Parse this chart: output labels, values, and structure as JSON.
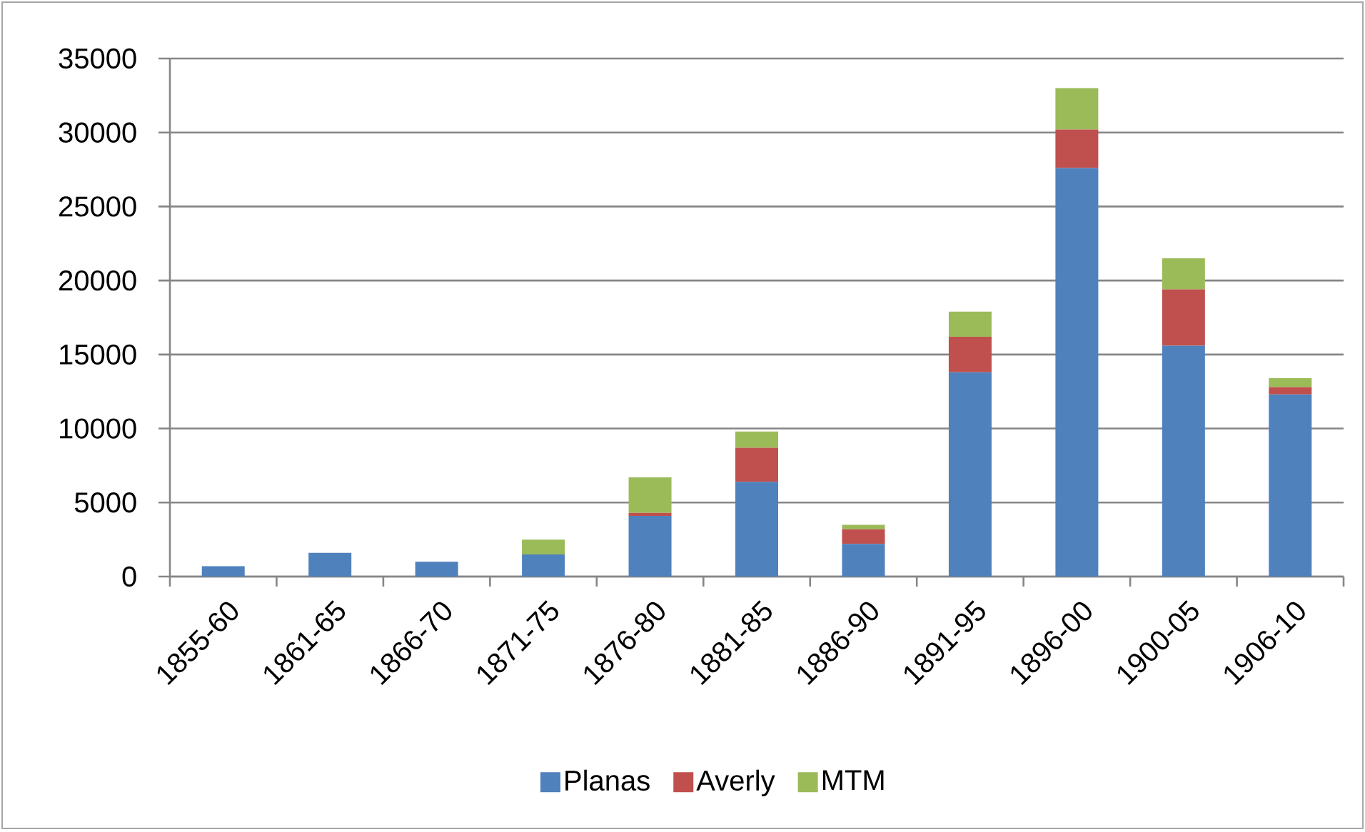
{
  "chart_data": {
    "type": "bar",
    "stacked": true,
    "categories": [
      "1855-60",
      "1861-65",
      "1866-70",
      "1871-75",
      "1876-80",
      "1881-85",
      "1886-90",
      "1891-95",
      "1896-00",
      "1900-05",
      "1906-10"
    ],
    "series": [
      {
        "name": "Planas",
        "color": "#4f81bd",
        "values": [
          700,
          1600,
          1000,
          1500,
          4100,
          6400,
          2200,
          13800,
          27600,
          15600,
          12300
        ]
      },
      {
        "name": "Averly",
        "color": "#c0504d",
        "values": [
          0,
          0,
          0,
          0,
          200,
          2300,
          1000,
          2400,
          2600,
          3800,
          500
        ]
      },
      {
        "name": "MTM",
        "color": "#9bbb59",
        "values": [
          0,
          0,
          0,
          1000,
          2400,
          1100,
          300,
          1700,
          2800,
          2100,
          600
        ]
      }
    ],
    "ylim": [
      0,
      35000
    ],
    "yticks": [
      0,
      5000,
      10000,
      15000,
      20000,
      25000,
      30000,
      35000
    ],
    "grid": "y",
    "legend": "bottom"
  }
}
